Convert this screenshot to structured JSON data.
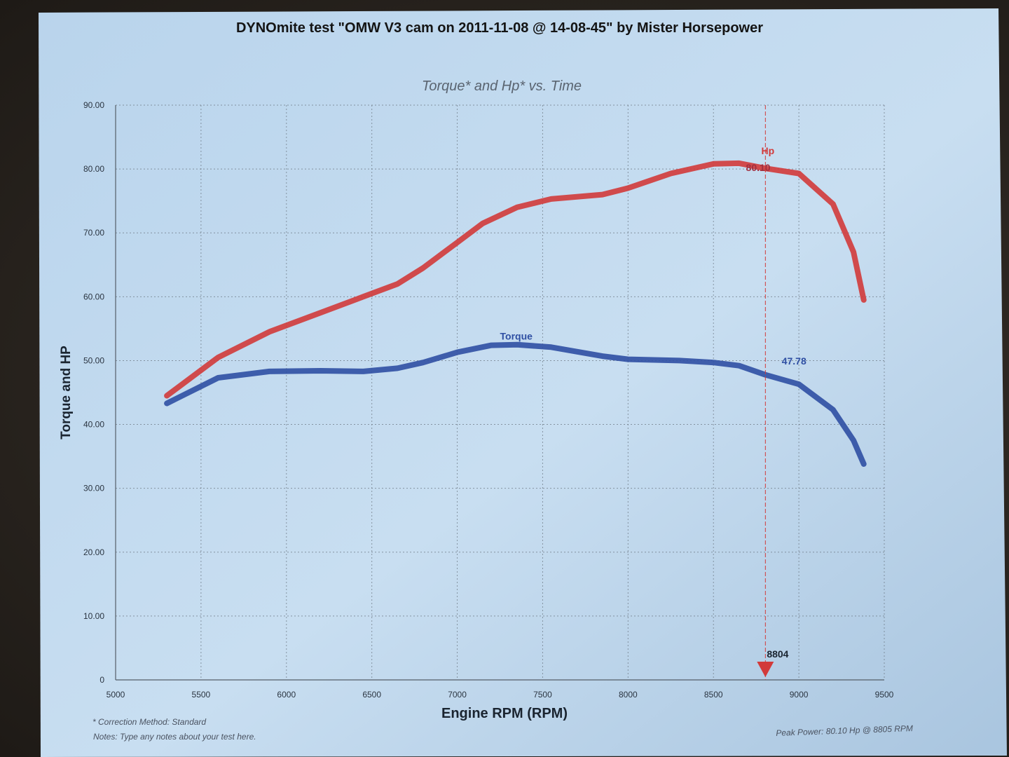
{
  "chart_data": {
    "type": "line",
    "title": "DYNOmite test \"OMW V3 cam on 2011-11-08 @ 14-08-45\" by Mister Horsepower",
    "subtitle": "Torque* and Hp* vs. Time",
    "xlabel": "Engine RPM (RPM)",
    "ylabel": "Torque and HP",
    "xlim": [
      5000,
      9500
    ],
    "ylim": [
      0,
      90
    ],
    "x_ticks": [
      "5000",
      "5500",
      "6000",
      "6500",
      "7000",
      "7500",
      "8000",
      "8500",
      "9000",
      "9500"
    ],
    "y_ticks": [
      "0",
      "10.00",
      "20.00",
      "30.00",
      "40.00",
      "50.00",
      "60.00",
      "70.00",
      "80.00",
      "90.00"
    ],
    "grid": true,
    "series": [
      {
        "name": "Hp",
        "color": "#d23a3a",
        "x": [
          5300,
          5600,
          5900,
          6200,
          6450,
          6650,
          6800,
          7000,
          7150,
          7350,
          7550,
          7850,
          8000,
          8250,
          8500,
          8650,
          8804,
          9000,
          9200,
          9320,
          9380
        ],
        "y": [
          44.5,
          50.5,
          54.5,
          57.5,
          60.0,
          62.0,
          64.5,
          68.5,
          71.5,
          74.0,
          75.3,
          76.0,
          77.0,
          79.3,
          80.8,
          80.9,
          80.1,
          79.3,
          74.5,
          67.0,
          59.5
        ]
      },
      {
        "name": "Torque",
        "color": "#2f4fa3",
        "x": [
          5300,
          5600,
          5900,
          6200,
          6450,
          6650,
          6800,
          7000,
          7200,
          7350,
          7550,
          7850,
          8000,
          8300,
          8500,
          8650,
          8804,
          9000,
          9200,
          9320,
          9380
        ],
        "y": [
          43.3,
          47.3,
          48.3,
          48.4,
          48.3,
          48.8,
          49.7,
          51.3,
          52.4,
          52.5,
          52.1,
          50.7,
          50.2,
          50.0,
          49.7,
          49.2,
          47.78,
          46.3,
          42.3,
          37.5,
          33.8
        ]
      }
    ],
    "annotations": [
      {
        "text": "Hp",
        "x": 8780,
        "y": 82.3,
        "color": "#d23a3a"
      },
      {
        "text": "80.10",
        "x": 8690,
        "y": 79.7,
        "color": "#a03040"
      },
      {
        "text": "Torque",
        "x": 7250,
        "y": 53.3,
        "color": "#2f4fa3"
      },
      {
        "text": "47.78",
        "x": 8900,
        "y": 49.4,
        "color": "#2f4fa3"
      }
    ],
    "marker": {
      "x": 8804,
      "label": "8804",
      "color": "#d23a3a"
    },
    "footnotes": {
      "correction": "* Correction Method: Standard",
      "notes": "Notes: Type any notes about your test here.",
      "peak_power": "Peak Power: 80.10 Hp @ 8805 RPM"
    }
  }
}
